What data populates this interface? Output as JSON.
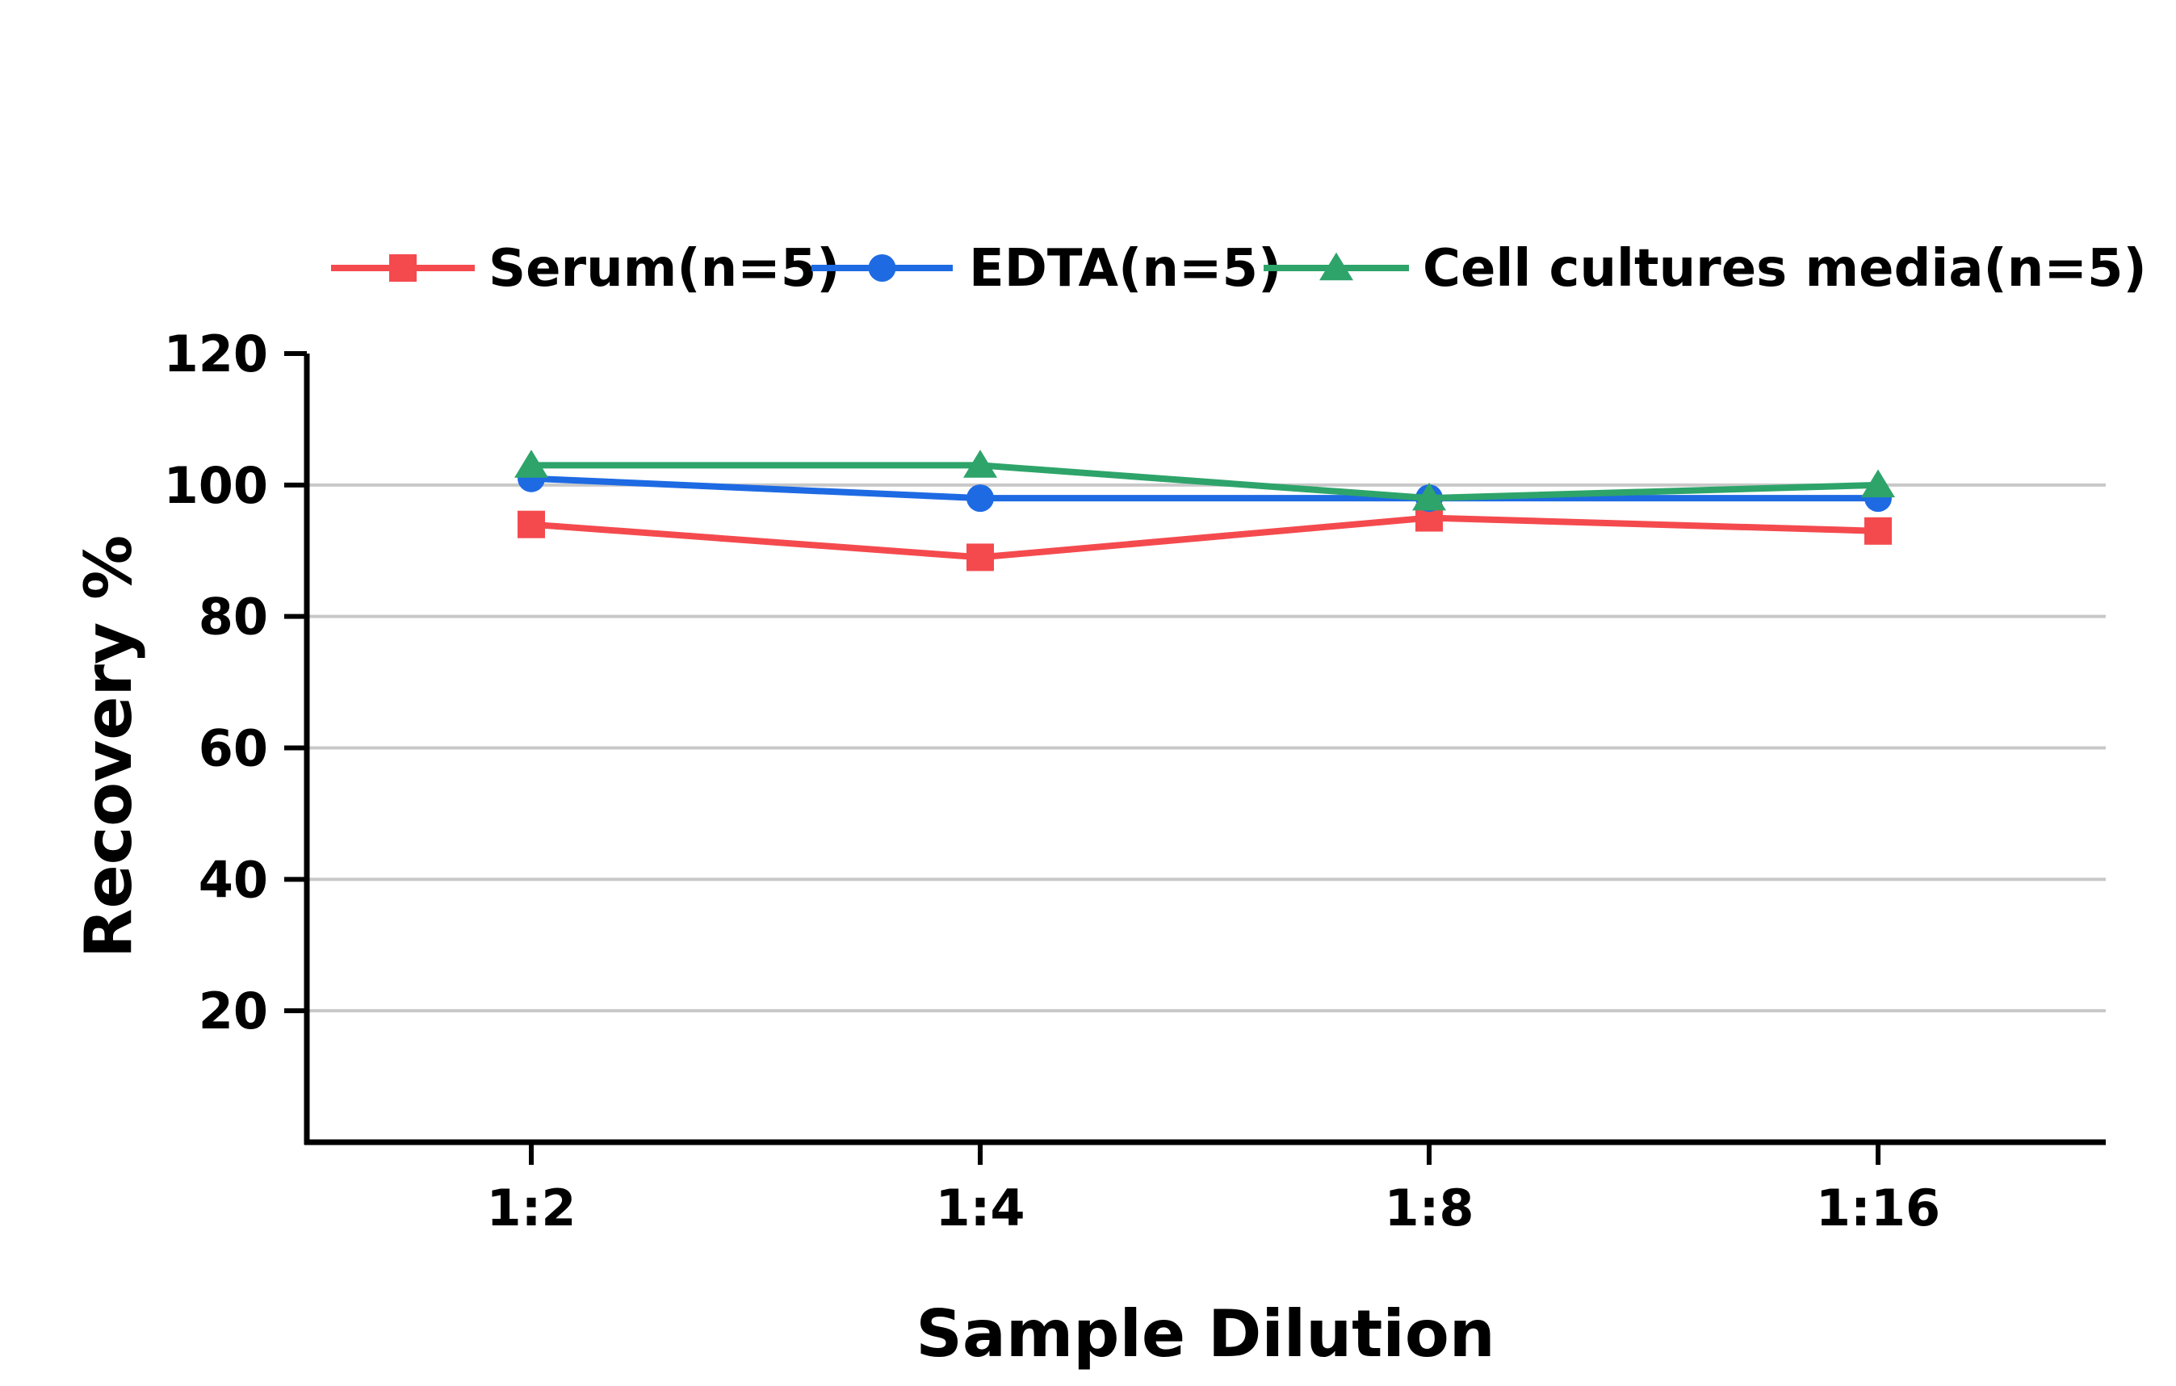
{
  "chart_data": {
    "type": "line",
    "title": "",
    "xlabel": "Sample Dilution",
    "ylabel": "Recovery %",
    "categories": [
      "1:2",
      "1:4",
      "1:8",
      "1:16"
    ],
    "ylim": [
      0,
      120
    ],
    "yticks": [
      20,
      40,
      60,
      80,
      100,
      120
    ],
    "grid": true,
    "legend_position": "top",
    "series": [
      {
        "name": "Serum(n=5)",
        "values": [
          94,
          89,
          95,
          93
        ],
        "color": "#f44a4e",
        "marker": "square"
      },
      {
        "name": "EDTA(n=5)",
        "values": [
          101,
          98,
          98,
          98
        ],
        "color": "#1e6ae3",
        "marker": "circle"
      },
      {
        "name": "Cell cultures media(n=5)",
        "values": [
          103,
          103,
          98,
          100
        ],
        "color": "#2ea46a",
        "marker": "triangle"
      }
    ]
  }
}
